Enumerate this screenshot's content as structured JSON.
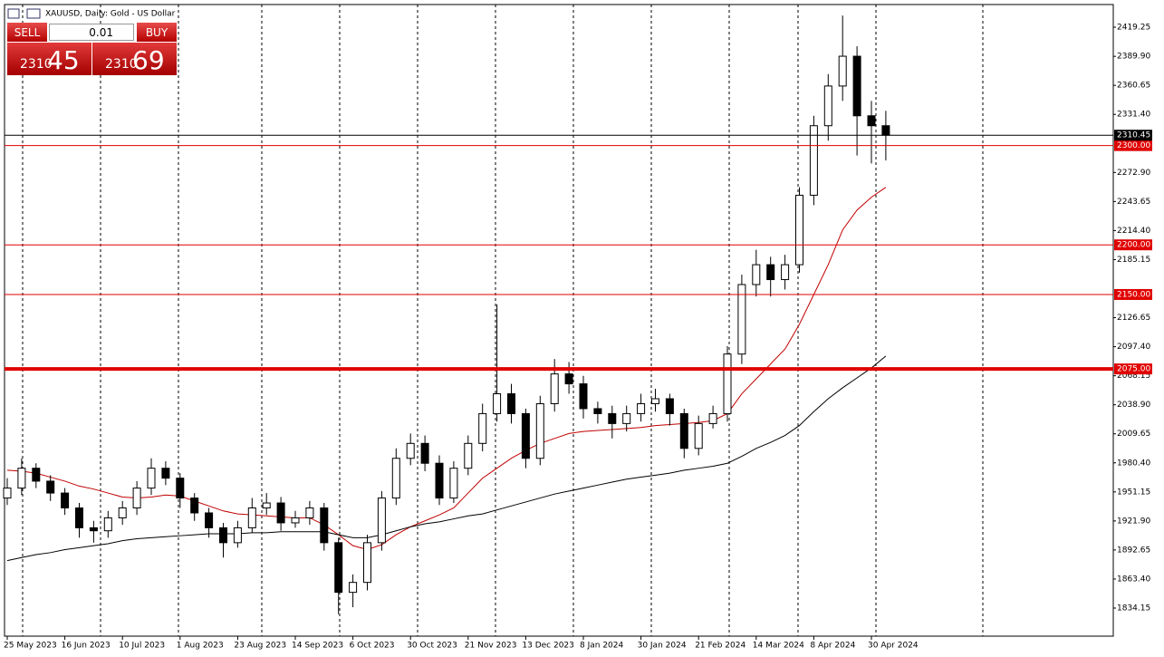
{
  "chart_data": {
    "type": "candlestick",
    "title": "XAUUSD, Daily: Gold - US Dollar",
    "categories": [
      "25 May 2023",
      null,
      null,
      null,
      "16 Jun 2023",
      null,
      null,
      null,
      "10 Jul 2023",
      null,
      null,
      null,
      "1 Aug 2023",
      null,
      null,
      null,
      "23 Aug 2023",
      null,
      null,
      null,
      "14 Sep 2023",
      null,
      null,
      null,
      "6 Oct 2023",
      null,
      null,
      null,
      "30 Oct 2023",
      null,
      null,
      null,
      "21 Nov 2023",
      null,
      null,
      null,
      "13 Dec 2023",
      null,
      null,
      null,
      "8 Jan 2024",
      null,
      null,
      null,
      "30 Jan 2024",
      null,
      null,
      null,
      "21 Feb 2024",
      null,
      null,
      null,
      "14 Mar 2024",
      null,
      null,
      null,
      "8 Apr 2024",
      null,
      null,
      null,
      "30 Apr 2024",
      null
    ],
    "open": [
      1945,
      1955,
      1975,
      1962,
      1950,
      1935,
      1915,
      1912,
      1925,
      1935,
      1955,
      1975,
      1965,
      1945,
      1930,
      1915,
      1900,
      1915,
      1935,
      1940,
      1920,
      1925,
      1935,
      1900,
      1850,
      1860,
      1900,
      1945,
      1985,
      2000,
      1980,
      1945,
      1975,
      2000,
      2030,
      2050,
      2030,
      1985,
      2040,
      2070,
      2060,
      2035,
      2030,
      2020,
      2030,
      2040,
      2045,
      2030,
      1995,
      2020,
      2030,
      2090,
      2160,
      2180,
      2165,
      2180,
      2250,
      2320,
      2360,
      2390,
      2330,
      2320
    ],
    "high": [
      1965,
      1985,
      1980,
      1968,
      1955,
      1940,
      1922,
      1932,
      1942,
      1962,
      1985,
      1982,
      1970,
      1950,
      1935,
      1920,
      1922,
      1945,
      1950,
      1946,
      1932,
      1942,
      1940,
      1905,
      1868,
      1908,
      1952,
      1995,
      2010,
      2008,
      1988,
      1982,
      2008,
      2040,
      2140,
      2060,
      2035,
      2048,
      2085,
      2082,
      2068,
      2042,
      2038,
      2038,
      2050,
      2055,
      2050,
      2035,
      2028,
      2038,
      2098,
      2170,
      2195,
      2188,
      2190,
      2258,
      2330,
      2372,
      2431,
      2400,
      2345,
      2335
    ],
    "low": [
      1938,
      1948,
      1955,
      1942,
      1928,
      1905,
      1900,
      1905,
      1918,
      1928,
      1948,
      1958,
      1935,
      1922,
      1905,
      1885,
      1895,
      1910,
      1928,
      1912,
      1915,
      1918,
      1892,
      1828,
      1835,
      1852,
      1892,
      1938,
      1978,
      1972,
      1938,
      1940,
      1968,
      1992,
      2022,
      2020,
      1975,
      1978,
      2032,
      2050,
      2025,
      2020,
      2005,
      2012,
      2022,
      2032,
      2018,
      1985,
      1988,
      2015,
      2022,
      2080,
      2148,
      2148,
      2155,
      2172,
      2240,
      2305,
      2345,
      2290,
      2282,
      2285
    ],
    "close": [
      1955,
      1975,
      1962,
      1950,
      1935,
      1915,
      1912,
      1925,
      1935,
      1955,
      1975,
      1965,
      1945,
      1930,
      1915,
      1900,
      1915,
      1935,
      1940,
      1920,
      1925,
      1935,
      1900,
      1850,
      1860,
      1900,
      1945,
      1985,
      2000,
      1980,
      1945,
      1975,
      2000,
      2030,
      2050,
      2030,
      1985,
      2040,
      2070,
      2060,
      2035,
      2030,
      2020,
      2030,
      2040,
      2045,
      2030,
      1995,
      2020,
      2030,
      2090,
      2160,
      2180,
      2165,
      2180,
      2250,
      2320,
      2360,
      2390,
      2330,
      2320,
      2310.45
    ],
    "series": [
      {
        "color": "#c00000",
        "values": [
          1973,
          1972,
          1970,
          1966,
          1962,
          1957,
          1954,
          1950,
          1946,
          1945,
          1946,
          1948,
          1947,
          1942,
          1937,
          1932,
          1929,
          1928,
          1927,
          1926,
          1925,
          1925,
          1918,
          1908,
          1897,
          1893,
          1898,
          1908,
          1916,
          1922,
          1928,
          1935,
          1950,
          1965,
          1975,
          1985,
          1993,
          2000,
          2005,
          2010,
          2012,
          2013,
          2014,
          2015,
          2016,
          2018,
          2019,
          2020,
          2021,
          2023,
          2030,
          2050,
          2065,
          2080,
          2095,
          2120,
          2150,
          2180,
          2215,
          2235,
          2248,
          2258
        ]
      },
      {
        "color": "#000000",
        "values": [
          1882,
          1885,
          1888,
          1890,
          1893,
          1895,
          1897,
          1899,
          1902,
          1904,
          1905,
          1906,
          1907,
          1908,
          1909,
          1909,
          1909,
          1910,
          1910,
          1911,
          1911,
          1911,
          1911,
          1908,
          1905,
          1905,
          1908,
          1912,
          1916,
          1919,
          1921,
          1924,
          1927,
          1929,
          1933,
          1937,
          1941,
          1945,
          1949,
          1952,
          1955,
          1958,
          1961,
          1964,
          1966,
          1968,
          1970,
          1973,
          1975,
          1977,
          1980,
          1987,
          1995,
          2001,
          2008,
          2018,
          2032,
          2045,
          2056,
          2066,
          2076,
          2088
        ]
      }
    ],
    "ylim": [
      1805.85,
      2442.07
    ],
    "yticks": [
      2419.25,
      {
        "value": 2389.9,
        "label": "2389.90"
      },
      2360.65,
      {
        "value": 2331.4,
        "label": "2331.40"
      },
      {
        "value": 2272.9,
        "label": "2272.90"
      },
      2243.65,
      {
        "value": 2214.4,
        "label": "2214.40"
      },
      2185.15,
      2126.65,
      {
        "value": 2097.4,
        "label": "2097.40"
      },
      2068.15,
      {
        "value": 2038.9,
        "label": "2038.90"
      },
      2009.65,
      {
        "value": 1980.4,
        "label": "1980.40"
      },
      1951.15,
      {
        "value": 1921.9,
        "label": "1921.90"
      },
      1892.65,
      {
        "value": 1863.4,
        "label": "1863.40"
      },
      1834.15
    ],
    "levels": [
      {
        "value": 2300,
        "label": "2300.00",
        "color": "#e00000",
        "line_width": 1
      },
      {
        "value": 2200,
        "label": "2200.00",
        "color": "#e00000",
        "line_width": 1
      },
      {
        "value": 2150,
        "label": "2150.00",
        "color": "#e00000",
        "line_width": 1
      },
      {
        "value": 2075,
        "label": "2075.00",
        "color": "#e00000",
        "line_width": 4
      }
    ],
    "last_price": 2310.45,
    "grid": true
  },
  "trade_panel": {
    "sell_label": "SELL",
    "buy_label": "BUY",
    "volume": "0.01",
    "bid_main": "2310",
    "bid_pips": "45",
    "ask_main": "2310",
    "ask_pips": "69"
  }
}
